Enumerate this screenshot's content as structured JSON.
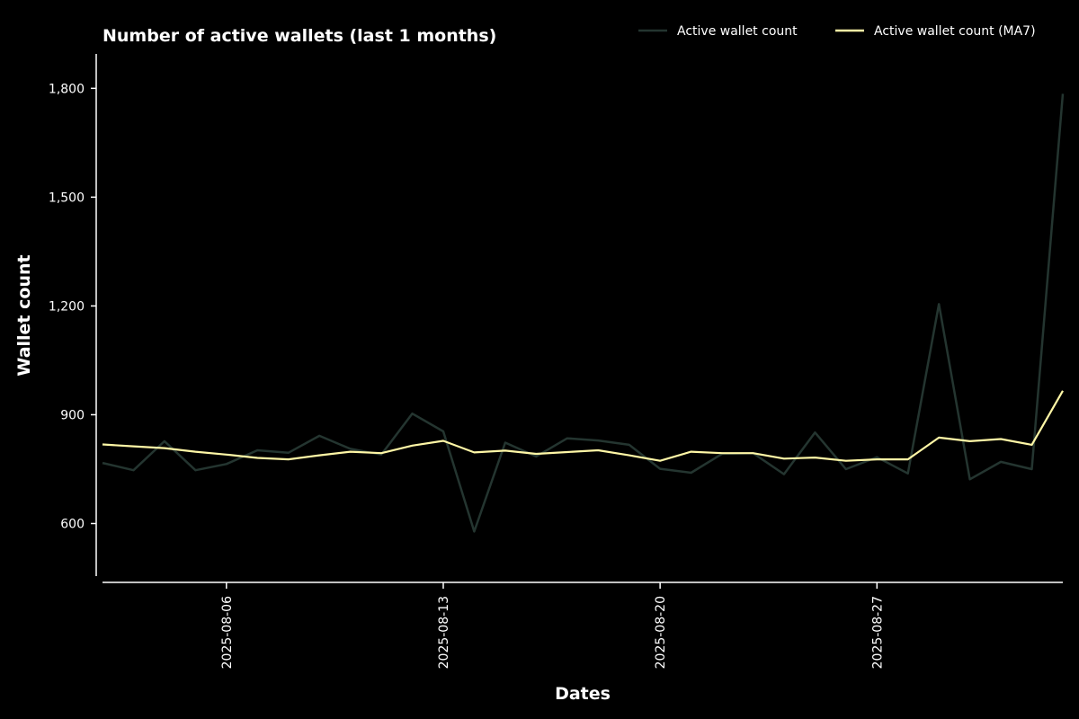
{
  "chart_data": {
    "type": "line",
    "title": "Number of active wallets (last 1 months)",
    "xlabel": "Dates",
    "ylabel": "Wallet count",
    "x": [
      "2025-08-02",
      "2025-08-03",
      "2025-08-04",
      "2025-08-05",
      "2025-08-06",
      "2025-08-07",
      "2025-08-08",
      "2025-08-09",
      "2025-08-10",
      "2025-08-11",
      "2025-08-12",
      "2025-08-13",
      "2025-08-14",
      "2025-08-15",
      "2025-08-16",
      "2025-08-17",
      "2025-08-18",
      "2025-08-19",
      "2025-08-20",
      "2025-08-21",
      "2025-08-22",
      "2025-08-23",
      "2025-08-24",
      "2025-08-25",
      "2025-08-26",
      "2025-08-27",
      "2025-08-28",
      "2025-08-29",
      "2025-08-30",
      "2025-08-31",
      "2025-09-01",
      "2025-09-02"
    ],
    "xticks": [
      "2025-08-06",
      "2025-08-13",
      "2025-08-20",
      "2025-08-27"
    ],
    "yticks": [
      600,
      900,
      1200,
      1500,
      1800
    ],
    "ytick_labels": [
      "600",
      "900",
      "1,200",
      "1,500",
      "1,800"
    ],
    "ylim": [
      455,
      1895
    ],
    "grid": false,
    "legend_position": "top-right",
    "series": [
      {
        "name": "Active wallet count",
        "color": "#243530",
        "values": [
          767,
          747,
          827,
          747,
          764,
          802,
          795,
          842,
          806,
          790,
          903,
          854,
          578,
          823,
          785,
          835,
          829,
          817,
          751,
          740,
          792,
          794,
          736,
          851,
          750,
          783,
          738,
          1205,
          722,
          770,
          750,
          1785
        ]
      },
      {
        "name": "Active wallet count (MA7)",
        "color": "#fff7a6",
        "values": [
          818,
          813,
          808,
          798,
          790,
          781,
          777,
          788,
          798,
          794,
          815,
          828,
          796,
          801,
          792,
          797,
          802,
          788,
          773,
          798,
          794,
          794,
          779,
          782,
          773,
          777,
          777,
          837,
          827,
          833,
          817,
          966
        ]
      }
    ]
  }
}
